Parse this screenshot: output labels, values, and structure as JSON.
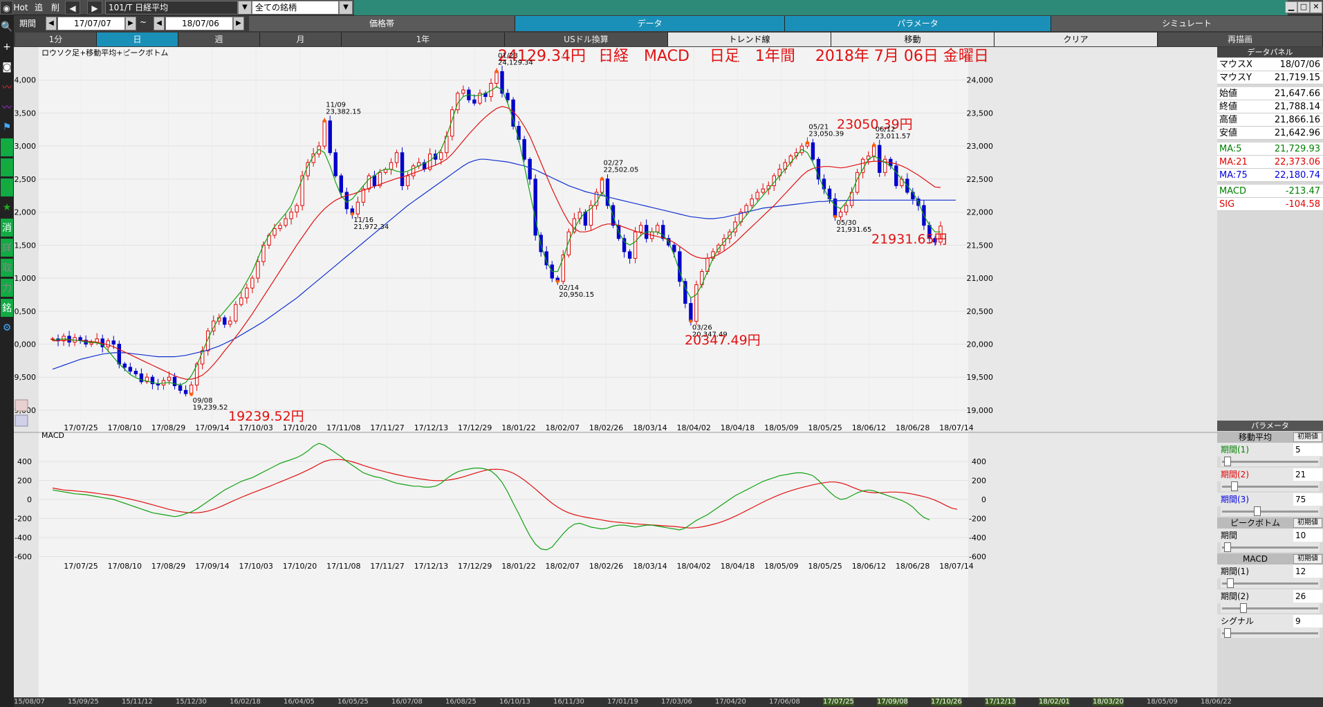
{
  "toolbar": {
    "hot": "Hot",
    "add": "追",
    "del": "削",
    "symbol": "101/T 日経平均",
    "market": "全ての銘柄",
    "period_label": "期間",
    "date_from": "17/07/07",
    "tilde": "~",
    "date_to": "18/07/06"
  },
  "tabs": [
    {
      "label": "価格帯",
      "active": false
    },
    {
      "label": "データ",
      "active": true
    },
    {
      "label": "パラメータ",
      "active": true
    },
    {
      "label": "シミュレート",
      "active": false
    }
  ],
  "buttons": [
    {
      "label": "1分",
      "style": "dk"
    },
    {
      "label": "日",
      "style": "on"
    },
    {
      "label": "週",
      "style": "dk"
    },
    {
      "label": "月",
      "style": "dk"
    },
    {
      "label": "1年",
      "style": "dk"
    },
    {
      "label": "USドル換算",
      "style": "dk"
    },
    {
      "label": "トレンド線",
      "style": "lt"
    },
    {
      "label": "移動",
      "style": "lt"
    },
    {
      "label": "クリア",
      "style": "lt"
    },
    {
      "label": "再描画",
      "style": "dk"
    }
  ],
  "left_icons": [
    "search-icon",
    "crosshair-icon",
    "camera-icon",
    "chart-icon",
    "chart-icon",
    "flag-icon",
    "1",
    "2",
    "3",
    "star-icon",
    "消",
    "詳",
    "取",
    "力",
    "銘",
    "gear-icon"
  ],
  "data_panel": {
    "header": "データパネル",
    "rows": [
      {
        "k": "マウスX",
        "v": "18/07/06",
        "c": "#000000"
      },
      {
        "k": "マウスY",
        "v": "21,719.15",
        "c": "#000000"
      },
      {
        "k": "始値",
        "v": "21,647.66",
        "c": "#000000"
      },
      {
        "k": "終値",
        "v": "21,788.14",
        "c": "#000000"
      },
      {
        "k": "高値",
        "v": "21,866.16",
        "c": "#000000"
      },
      {
        "k": "安値",
        "v": "21,642.96",
        "c": "#000000"
      },
      {
        "k": "MA:5",
        "v": "21,729.93",
        "c": "#008000"
      },
      {
        "k": "MA:21",
        "v": "22,373.06",
        "c": "#e00000"
      },
      {
        "k": "MA:75",
        "v": "22,180.74",
        "c": "#0000e0"
      },
      {
        "k": "MACD",
        "v": "-213.47",
        "c": "#008000"
      },
      {
        "k": "SIG",
        "v": "-104.58",
        "c": "#e00000"
      }
    ]
  },
  "params": {
    "header": "パラメータ",
    "reset": "初期値",
    "sections": [
      {
        "title": "移動平均",
        "rows": [
          {
            "k": "期間(1)",
            "v": "5",
            "c": "#008000",
            "knob": 0.02
          },
          {
            "k": "期間(2)",
            "v": "21",
            "c": "#e00000",
            "knob": 0.1
          },
          {
            "k": "期間(3)",
            "v": "75",
            "c": "#0000e0",
            "knob": 0.35
          }
        ]
      },
      {
        "title": "ピークボトム",
        "rows": [
          {
            "k": "期間",
            "v": "10",
            "c": "#000000",
            "knob": 0.02
          }
        ]
      },
      {
        "title": "MACD",
        "rows": [
          {
            "k": "期間(1)",
            "v": "12",
            "c": "#000000",
            "knob": 0.05
          },
          {
            "k": "期間(2)",
            "v": "26",
            "c": "#000000",
            "knob": 0.2
          },
          {
            "k": "シグナル",
            "v": "9",
            "c": "#000000",
            "knob": 0.02
          }
        ]
      }
    ]
  },
  "bottom_dates": [
    {
      "t": "15/08/07",
      "hl": false
    },
    {
      "t": "15/09/25",
      "hl": false
    },
    {
      "t": "15/11/12",
      "hl": false
    },
    {
      "t": "15/12/30",
      "hl": false
    },
    {
      "t": "16/02/18",
      "hl": false
    },
    {
      "t": "16/04/05",
      "hl": false
    },
    {
      "t": "16/05/25",
      "hl": false
    },
    {
      "t": "16/07/08",
      "hl": false
    },
    {
      "t": "16/08/25",
      "hl": false
    },
    {
      "t": "16/10/13",
      "hl": false
    },
    {
      "t": "16/11/30",
      "hl": false
    },
    {
      "t": "17/01/19",
      "hl": false
    },
    {
      "t": "17/03/06",
      "hl": false
    },
    {
      "t": "17/04/20",
      "hl": false
    },
    {
      "t": "17/06/08",
      "hl": false
    },
    {
      "t": "17/07/25",
      "hl": true
    },
    {
      "t": "17/09/08",
      "hl": true
    },
    {
      "t": "17/10/26",
      "hl": true
    },
    {
      "t": "17/12/13",
      "hl": true
    },
    {
      "t": "18/02/01",
      "hl": true
    },
    {
      "t": "18/03/20",
      "hl": true
    },
    {
      "t": "18/05/09",
      "hl": false
    },
    {
      "t": "18/06/22",
      "hl": false
    }
  ],
  "chart_data": {
    "type": "candlestick",
    "title": "24129.34円  日経  MACD  日足  1年間  2018年 7月 06日 金曜日",
    "title_parts": [
      "24129.34円",
      "日経　MACD　 日足　1年間　 2018年 7月 06日 金曜日"
    ],
    "subtitle": "ロウソク足+移動平均+ピークボトム",
    "ylim": [
      18800,
      24500
    ],
    "yticks": [
      19000,
      19500,
      20000,
      20500,
      21000,
      21500,
      22000,
      22500,
      23000,
      23500,
      24000
    ],
    "ytick_labels": [
      "19,000",
      "19,500",
      "20,000",
      "20,500",
      "21,000",
      "21,500",
      "22,000",
      "22,500",
      "23,000",
      "23,500",
      "24,000"
    ],
    "x_dates": [
      "17/07/25",
      "17/08/10",
      "17/08/29",
      "17/09/14",
      "17/10/03",
      "17/10/20",
      "17/11/08",
      "17/11/27",
      "17/12/13",
      "17/12/29",
      "18/01/22",
      "18/02/07",
      "18/02/26",
      "18/03/14",
      "18/04/02",
      "18/04/18",
      "18/05/09",
      "18/05/25",
      "18/06/12",
      "18/06/28",
      "18/07/14"
    ],
    "closes": [
      20080,
      20050,
      20120,
      20030,
      20100,
      20060,
      20000,
      20020,
      20080,
      19960,
      20050,
      20000,
      19700,
      19650,
      19590,
      19550,
      19430,
      19500,
      19400,
      19380,
      19450,
      19500,
      19370,
      19300,
      19250,
      19380,
      19700,
      19900,
      20200,
      20350,
      20400,
      20300,
      20350,
      20600,
      20700,
      20850,
      21000,
      21250,
      21500,
      21650,
      21750,
      21800,
      21900,
      22000,
      22100,
      22550,
      22750,
      22880,
      23000,
      23382,
      22900,
      22550,
      22300,
      22050,
      21972,
      22150,
      22350,
      22550,
      22400,
      22600,
      22650,
      22750,
      22900,
      22400,
      22550,
      22700,
      22750,
      22650,
      22880,
      22800,
      22900,
      23150,
      23550,
      23800,
      23850,
      23700,
      23650,
      23800,
      23750,
      23950,
      24129,
      23800,
      23700,
      23300,
      23100,
      22800,
      22500,
      21650,
      21400,
      21200,
      21000,
      20950,
      21350,
      21700,
      21900,
      22000,
      21800,
      22100,
      22300,
      22502,
      22100,
      21800,
      21600,
      21400,
      21300,
      21700,
      21800,
      21600,
      21700,
      21800,
      21600,
      21500,
      21400,
      20950,
      20617,
      20347,
      20900,
      21100,
      21300,
      21400,
      21500,
      21600,
      21700,
      21850,
      22000,
      22100,
      22200,
      22300,
      22350,
      22400,
      22550,
      22650,
      22750,
      22850,
      22900,
      23000,
      23050,
      22800,
      22500,
      22350,
      22200,
      21931,
      22000,
      22100,
      22300,
      22600,
      22800,
      22850,
      23011,
      22600,
      22800,
      22700,
      22400,
      22500,
      22300,
      22200,
      22100,
      21800,
      21600,
      21546,
      21788
    ],
    "ma5": [
      20060,
      20070,
      20080,
      20070,
      20060,
      20050,
      20030,
      20030,
      20020,
      19990,
      19900,
      19800,
      19700,
      19620,
      19540,
      19490,
      19460,
      19440,
      19420,
      19400,
      19410,
      19420,
      19400,
      19380,
      19420,
      19520,
      19680,
      19880,
      20080,
      20250,
      20400,
      20500,
      20600,
      20700,
      20800,
      20950,
      21100,
      21300,
      21500,
      21650,
      21780,
      21880,
      21980,
      22100,
      22300,
      22500,
      22700,
      22850,
      22950,
      22900,
      22700,
      22450,
      22250,
      22150,
      22200,
      22300,
      22400,
      22500,
      22550,
      22620,
      22650,
      22650,
      22620,
      22600,
      22620,
      22660,
      22700,
      22740,
      22780,
      22850,
      22950,
      23150,
      23400,
      23650,
      23750,
      23780,
      23760,
      23770,
      23800,
      23840,
      23900,
      23850,
      23650,
      23400,
      23100,
      22700,
      22300,
      21900,
      21500,
      21250,
      21100,
      21100,
      21300,
      21550,
      21750,
      21900,
      22000,
      22050,
      22150,
      22300,
      22200,
      21950,
      21700,
      21550,
      21500,
      21550,
      21650,
      21700,
      21700,
      21700,
      21650,
      21550,
      21350,
      21100,
      20850,
      20700,
      20750,
      20900,
      21100,
      21300,
      21450,
      21550,
      21650,
      21750,
      21850,
      21950,
      22050,
      22150,
      22250,
      22350,
      22450,
      22550,
      22650,
      22750,
      22850,
      22950,
      22900,
      22750,
      22550,
      22350,
      22200,
      22100,
      22050,
      22150,
      22300,
      22500,
      22650,
      22800,
      22850,
      22800,
      22750,
      22700,
      22600,
      22500,
      22400,
      22300,
      22150,
      21950,
      21800,
      21700,
      21700
    ],
    "ma21": [
      20050,
      20050,
      20060,
      20060,
      20060,
      20055,
      20050,
      20040,
      20030,
      20010,
      19990,
      19960,
      19920,
      19880,
      19840,
      19800,
      19760,
      19720,
      19680,
      19640,
      19600,
      19560,
      19520,
      19490,
      19470,
      19470,
      19490,
      19530,
      19600,
      19690,
      19790,
      19900,
      20000,
      20110,
      20220,
      20340,
      20460,
      20590,
      20720,
      20850,
      20980,
      21110,
      21240,
      21370,
      21500,
      21620,
      21740,
      21860,
      21960,
      22050,
      22120,
      22180,
      22220,
      22250,
      22270,
      22300,
      22330,
      22360,
      22390,
      22420,
      22450,
      22480,
      22510,
      22530,
      22560,
      22590,
      22620,
      22650,
      22680,
      22710,
      22750,
      22800,
      22880,
      22980,
      23080,
      23180,
      23270,
      23360,
      23440,
      23510,
      23570,
      23600,
      23580,
      23520,
      23430,
      23300,
      23150,
      22950,
      22750,
      22550,
      22350,
      22170,
      22000,
      21850,
      21750,
      21700,
      21700,
      21720,
      21760,
      21800,
      21820,
      21820,
      21800,
      21770,
      21740,
      21710,
      21690,
      21670,
      21650,
      21630,
      21610,
      21580,
      21540,
      21480,
      21420,
      21360,
      21320,
      21300,
      21300,
      21320,
      21360,
      21410,
      21470,
      21540,
      21620,
      21700,
      21780,
      21860,
      21940,
      22020,
      22100,
      22190,
      22280,
      22370,
      22460,
      22550,
      22620,
      22660,
      22680,
      22690,
      22690,
      22680,
      22670,
      22680,
      22700,
      22720,
      22740,
      22760,
      22770,
      22770,
      22760,
      22750,
      22730,
      22700,
      22660,
      22610,
      22560,
      22500,
      22440,
      22380,
      22373
    ],
    "ma75": [
      19620,
      19650,
      19680,
      19710,
      19740,
      19770,
      19790,
      19810,
      19830,
      19850,
      19860,
      19870,
      19870,
      19870,
      19860,
      19850,
      19840,
      19830,
      19820,
      19810,
      19810,
      19810,
      19810,
      19820,
      19830,
      19850,
      19870,
      19890,
      19910,
      19940,
      19970,
      20010,
      20050,
      20090,
      20140,
      20190,
      20240,
      20290,
      20340,
      20400,
      20460,
      20520,
      20580,
      20640,
      20700,
      20770,
      20840,
      20910,
      20980,
      21050,
      21120,
      21190,
      21260,
      21330,
      21400,
      21470,
      21540,
      21610,
      21680,
      21750,
      21820,
      21890,
      21960,
      22030,
      22100,
      22160,
      22220,
      22280,
      22340,
      22400,
      22460,
      22520,
      22580,
      22640,
      22700,
      22750,
      22780,
      22800,
      22800,
      22790,
      22780,
      22770,
      22760,
      22740,
      22720,
      22700,
      22670,
      22640,
      22600,
      22560,
      22520,
      22480,
      22440,
      22400,
      22370,
      22340,
      22310,
      22290,
      22270,
      22250,
      22230,
      22210,
      22190,
      22170,
      22150,
      22130,
      22110,
      22090,
      22070,
      22050,
      22030,
      22010,
      21990,
      21970,
      21950,
      21930,
      21920,
      21910,
      21900,
      21900,
      21910,
      21920,
      21940,
      21960,
      21980,
      22000,
      22020,
      22040,
      22060,
      22070,
      22080,
      22090,
      22100,
      22110,
      22120,
      22130,
      22140,
      22150,
      22160,
      22160,
      22170,
      22170,
      22175,
      22178,
      22180,
      22180,
      22181,
      22181,
      22181,
      22181,
      22181,
      22181,
      22181,
      22181,
      22181,
      22181,
      22181,
      22181,
      22181,
      22181,
      22181
    ],
    "peaks": [
      {
        "date": "09/08",
        "value": "19,239.52",
        "big": "19239.52円",
        "type": "bottom"
      },
      {
        "date": "11/09",
        "value": "23,382.15",
        "type": "peak"
      },
      {
        "date": "11/16",
        "value": "21,972.34",
        "type": "bottom"
      },
      {
        "date": "01/23",
        "value": "24,129.34",
        "type": "peak"
      },
      {
        "date": "02/14",
        "value": "20,950.15",
        "type": "bottom"
      },
      {
        "date": "02/27",
        "value": "22,502.05",
        "type": "peak"
      },
      {
        "date": "03/26",
        "value": "20,347.49",
        "big": "20347.49円",
        "type": "bottom"
      },
      {
        "date": "05/21",
        "value": "23,050.39",
        "big": "23050.39円",
        "type": "peak"
      },
      {
        "date": "05/30",
        "value": "21,931.65",
        "big": "21931.65円",
        "type": "bottom"
      },
      {
        "date": "06/12",
        "value": "23,011.57",
        "type": "peak"
      }
    ],
    "macd_label": "MACD",
    "macd_ylim": [
      -640,
      640
    ],
    "macd_yticks": [
      -600,
      -400,
      -200,
      0,
      200,
      400
    ],
    "macd": [
      100,
      90,
      80,
      70,
      60,
      55,
      50,
      40,
      30,
      20,
      10,
      0,
      -20,
      -40,
      -60,
      -80,
      -100,
      -120,
      -140,
      -150,
      -160,
      -170,
      -180,
      -170,
      -150,
      -130,
      -100,
      -60,
      -20,
      20,
      60,
      100,
      130,
      160,
      190,
      210,
      230,
      260,
      290,
      320,
      350,
      380,
      400,
      420,
      440,
      470,
      510,
      560,
      590,
      570,
      530,
      490,
      450,
      400,
      360,
      320,
      280,
      260,
      240,
      230,
      210,
      190,
      170,
      160,
      150,
      140,
      140,
      130,
      130,
      140,
      170,
      220,
      260,
      290,
      310,
      320,
      330,
      330,
      320,
      300,
      250,
      180,
      80,
      -40,
      -150,
      -270,
      -380,
      -470,
      -520,
      -530,
      -500,
      -430,
      -360,
      -300,
      -260,
      -250,
      -270,
      -290,
      -300,
      -310,
      -300,
      -280,
      -270,
      -270,
      -280,
      -290,
      -280,
      -270,
      -270,
      -280,
      -290,
      -300,
      -310,
      -320,
      -300,
      -260,
      -220,
      -190,
      -160,
      -120,
      -80,
      -40,
      0,
      40,
      70,
      100,
      130,
      160,
      190,
      210,
      230,
      250,
      260,
      270,
      280,
      280,
      270,
      250,
      200,
      140,
      80,
      30,
      0,
      10,
      40,
      70,
      90,
      100,
      90,
      70,
      50,
      30,
      10,
      -10,
      -40,
      -80,
      -140,
      -190,
      -213
    ],
    "signal": [
      120,
      110,
      100,
      95,
      90,
      85,
      80,
      72,
      64,
      56,
      48,
      40,
      28,
      16,
      4,
      -10,
      -24,
      -40,
      -56,
      -72,
      -88,
      -104,
      -118,
      -128,
      -136,
      -140,
      -140,
      -134,
      -122,
      -104,
      -82,
      -56,
      -30,
      -4,
      22,
      46,
      70,
      92,
      114,
      136,
      160,
      184,
      208,
      232,
      256,
      282,
      310,
      340,
      372,
      400,
      416,
      420,
      420,
      410,
      396,
      378,
      358,
      340,
      322,
      306,
      290,
      276,
      262,
      250,
      238,
      228,
      218,
      210,
      202,
      198,
      198,
      202,
      210,
      222,
      238,
      256,
      274,
      292,
      306,
      316,
      318,
      314,
      300,
      276,
      244,
      204,
      158,
      110,
      58,
      8,
      -40,
      -80,
      -114,
      -140,
      -160,
      -174,
      -186,
      -196,
      -206,
      -216,
      -226,
      -234,
      -240,
      -246,
      -250,
      -256,
      -260,
      -264,
      -268,
      -272,
      -276,
      -280,
      -284,
      -290,
      -296,
      -300,
      -296,
      -288,
      -276,
      -262,
      -246,
      -226,
      -202,
      -176,
      -148,
      -118,
      -88,
      -58,
      -28,
      0,
      26,
      50,
      72,
      92,
      110,
      126,
      140,
      154,
      166,
      176,
      184,
      184,
      174,
      156,
      132,
      108,
      88,
      76,
      70,
      70,
      74,
      78,
      78,
      74,
      66,
      56,
      44,
      30,
      14,
      -8,
      -34,
      -64,
      -90,
      -104
    ]
  }
}
